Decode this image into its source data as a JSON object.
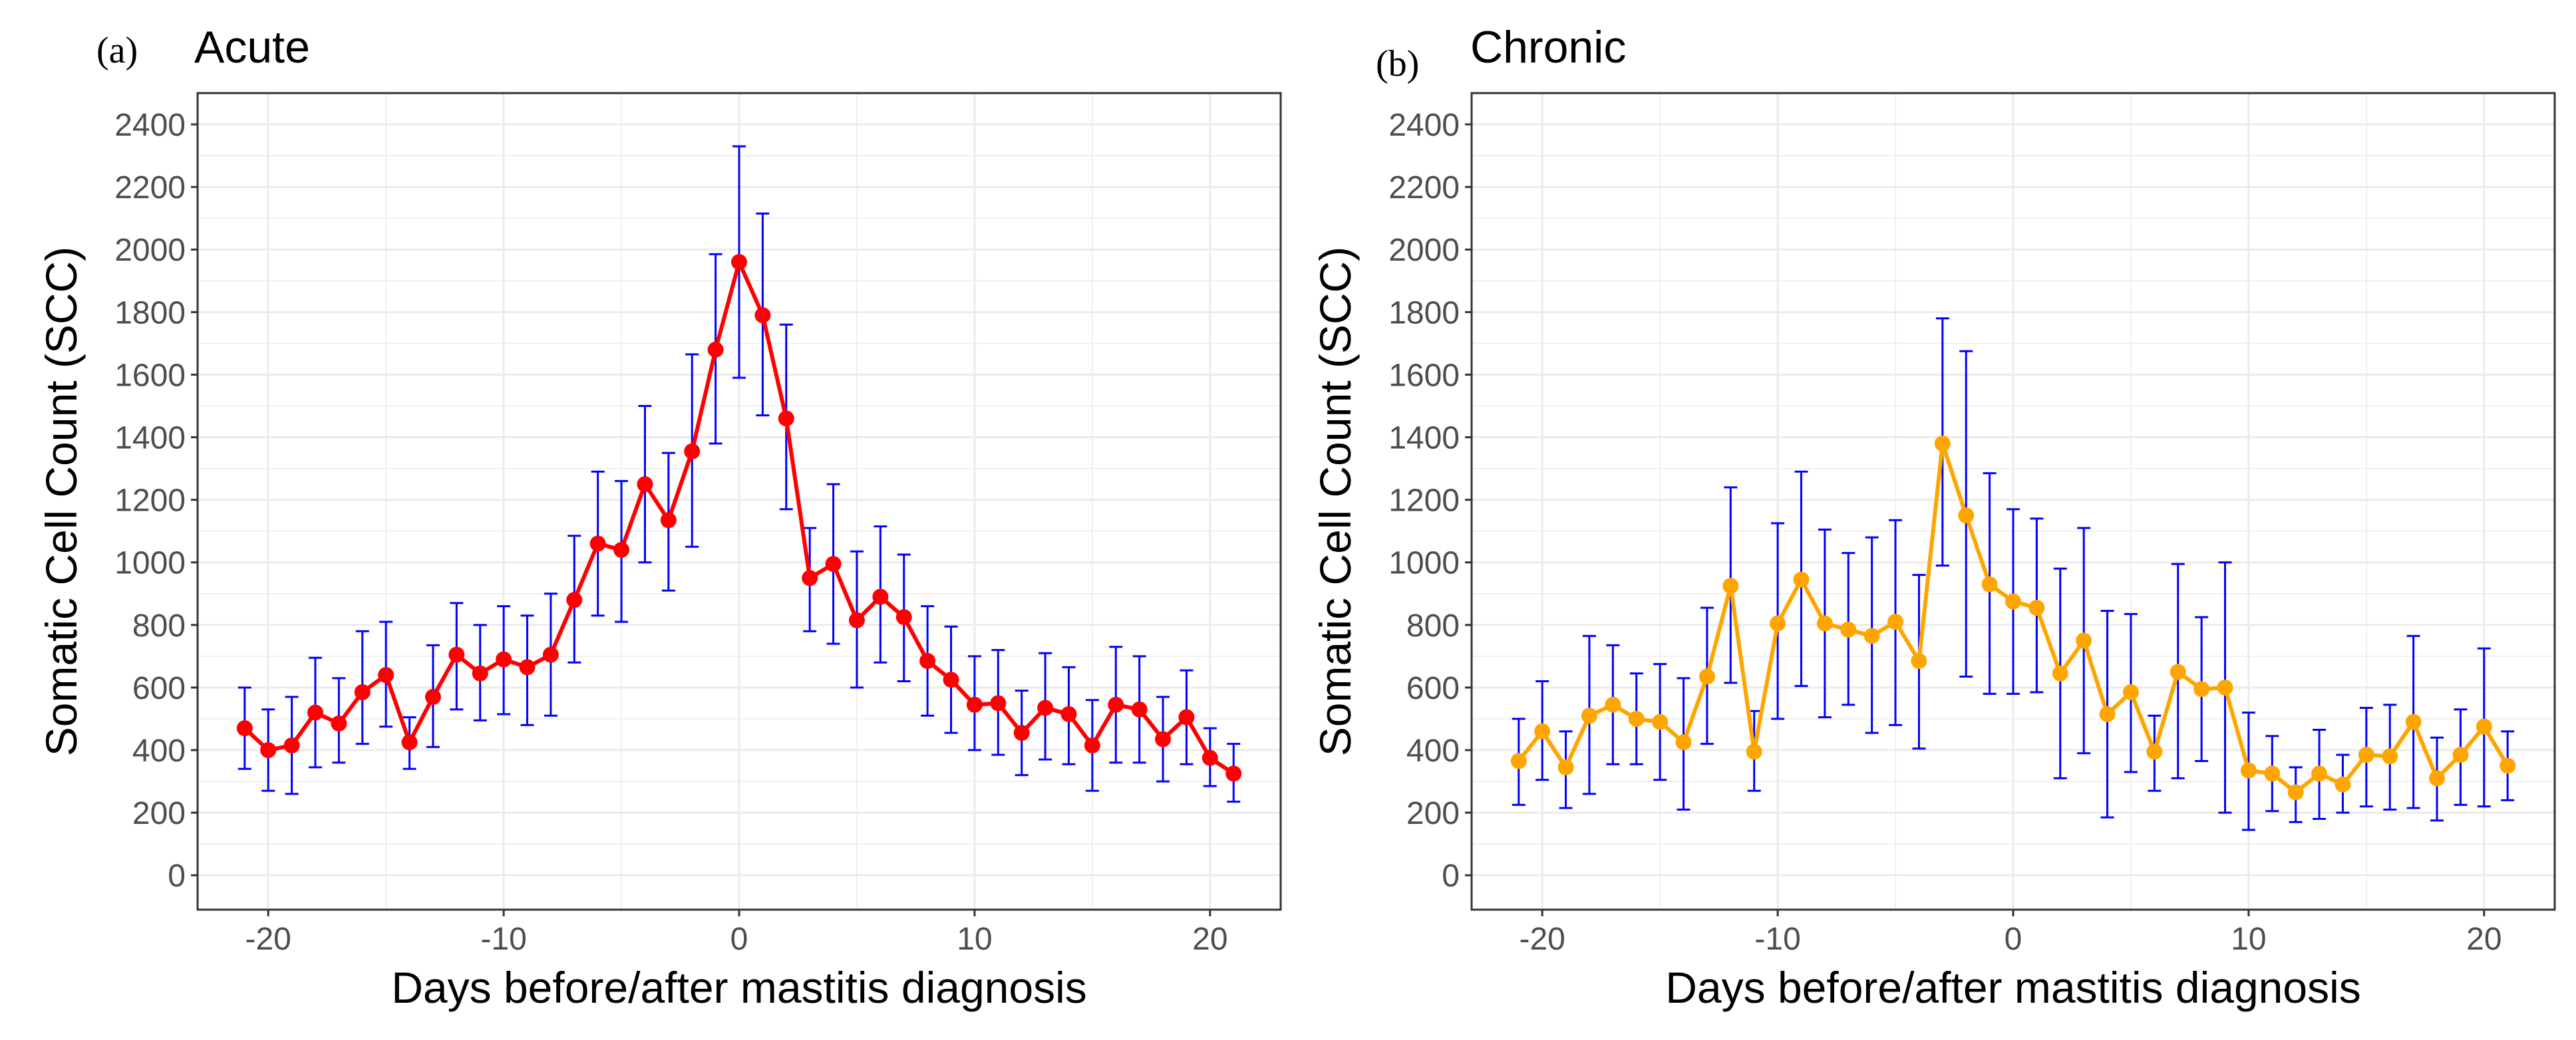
{
  "chart_data": [
    {
      "id": "a",
      "panel_label": "(a)",
      "title": "Acute",
      "type": "line",
      "xlabel": "Days before/after mastitis diagnosis",
      "ylabel": "Somatic Cell Count (SCC)",
      "xlim": [
        -23,
        23
      ],
      "ylim": [
        -110,
        2500
      ],
      "xticks": [
        -20,
        -10,
        0,
        10,
        20
      ],
      "xtick_labels": [
        "-20",
        "-10",
        "0",
        "10",
        "20"
      ],
      "yticks": [
        0,
        200,
        400,
        600,
        800,
        1000,
        1200,
        1400,
        1600,
        1800,
        2000,
        2200,
        2400
      ],
      "ytick_labels": [
        "0",
        "200",
        "400",
        "600",
        "800",
        "1000",
        "1200",
        "1400",
        "1600",
        "1800",
        "2000",
        "2200",
        "2400"
      ],
      "grid": true,
      "line_color": "#ff0000",
      "errorbar_color": "#0000ff",
      "x": [
        -21,
        -20,
        -19,
        -18,
        -17,
        -16,
        -15,
        -14,
        -13,
        -12,
        -11,
        -10,
        -9,
        -8,
        -7,
        -6,
        -5,
        -4,
        -3,
        -2,
        -1,
        0,
        1,
        2,
        3,
        4,
        5,
        6,
        7,
        8,
        9,
        10,
        11,
        12,
        13,
        14,
        15,
        16,
        17,
        18,
        19,
        20,
        21
      ],
      "y": [
        470,
        400,
        415,
        520,
        485,
        585,
        640,
        425,
        570,
        705,
        645,
        690,
        665,
        705,
        880,
        1060,
        1040,
        1250,
        1135,
        1355,
        1680,
        1960,
        1790,
        1460,
        950,
        995,
        815,
        890,
        825,
        685,
        625,
        545,
        550,
        455,
        535,
        515,
        415,
        545,
        530,
        435,
        505,
        375,
        325
      ],
      "y_low": [
        340,
        270,
        260,
        345,
        360,
        420,
        475,
        340,
        410,
        530,
        495,
        515,
        480,
        510,
        680,
        830,
        810,
        1000,
        910,
        1050,
        1380,
        1590,
        1470,
        1170,
        780,
        740,
        600,
        680,
        620,
        510,
        455,
        400,
        385,
        320,
        370,
        355,
        270,
        360,
        360,
        300,
        355,
        285,
        235
      ],
      "y_high": [
        600,
        530,
        570,
        695,
        630,
        780,
        810,
        505,
        735,
        870,
        800,
        860,
        830,
        900,
        1085,
        1290,
        1260,
        1500,
        1350,
        1665,
        1985,
        2330,
        2115,
        1760,
        1110,
        1250,
        1035,
        1115,
        1025,
        860,
        795,
        700,
        720,
        590,
        710,
        665,
        560,
        730,
        700,
        570,
        655,
        470,
        420
      ]
    },
    {
      "id": "b",
      "panel_label": "(b)",
      "title": "Chronic",
      "type": "line",
      "xlabel": "Days before/after mastitis diagnosis",
      "ylabel": "Somatic Cell Count (SCC)",
      "xlim": [
        -23,
        23
      ],
      "ylim": [
        -110,
        2500
      ],
      "xticks": [
        -20,
        -10,
        0,
        10,
        20
      ],
      "xtick_labels": [
        "-20",
        "-10",
        "0",
        "10",
        "20"
      ],
      "yticks": [
        0,
        200,
        400,
        600,
        800,
        1000,
        1200,
        1400,
        1600,
        1800,
        2000,
        2200,
        2400
      ],
      "ytick_labels": [
        "0",
        "200",
        "400",
        "600",
        "800",
        "1000",
        "1200",
        "1400",
        "1600",
        "1800",
        "2000",
        "2200",
        "2400"
      ],
      "grid": true,
      "line_color": "#ffa500",
      "errorbar_color": "#0000ff",
      "x": [
        -21,
        -20,
        -19,
        -18,
        -17,
        -16,
        -15,
        -14,
        -13,
        -12,
        -11,
        -10,
        -9,
        -8,
        -7,
        -6,
        -5,
        -4,
        -3,
        -2,
        -1,
        0,
        1,
        2,
        3,
        4,
        5,
        6,
        7,
        8,
        9,
        10,
        11,
        12,
        13,
        14,
        15,
        16,
        17,
        18,
        19,
        20,
        21
      ],
      "y": [
        365,
        460,
        345,
        510,
        545,
        500,
        490,
        425,
        635,
        925,
        395,
        805,
        945,
        805,
        785,
        765,
        810,
        685,
        1380,
        1150,
        930,
        875,
        855,
        645,
        750,
        515,
        585,
        395,
        650,
        595,
        600,
        335,
        325,
        265,
        325,
        290,
        385,
        380,
        490,
        310,
        385,
        475,
        350
      ],
      "y_low": [
        225,
        305,
        215,
        260,
        355,
        355,
        305,
        210,
        420,
        615,
        270,
        500,
        605,
        505,
        545,
        455,
        480,
        405,
        990,
        635,
        580,
        580,
        585,
        310,
        390,
        185,
        330,
        270,
        310,
        365,
        200,
        145,
        205,
        170,
        180,
        200,
        220,
        210,
        215,
        175,
        225,
        220,
        240
      ],
      "y_high": [
        500,
        620,
        460,
        765,
        735,
        645,
        675,
        630,
        855,
        1240,
        525,
        1125,
        1290,
        1105,
        1030,
        1080,
        1135,
        960,
        1780,
        1675,
        1285,
        1170,
        1140,
        980,
        1110,
        845,
        835,
        510,
        995,
        825,
        1000,
        520,
        445,
        345,
        465,
        385,
        535,
        545,
        765,
        440,
        530,
        725,
        460
      ]
    }
  ]
}
